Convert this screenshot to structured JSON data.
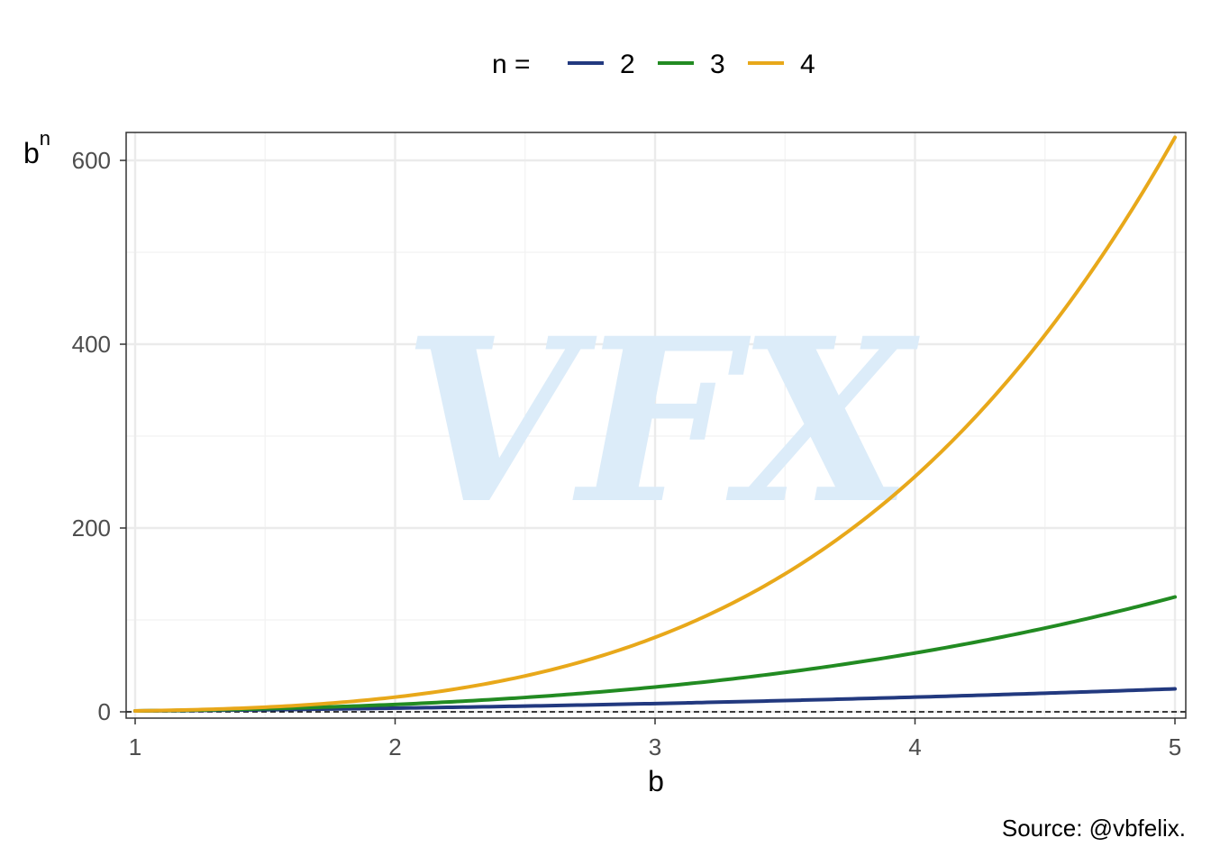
{
  "chart_data": {
    "type": "line",
    "xlabel": "b",
    "ylabel_base": "b",
    "ylabel_sup": "n",
    "legend_title": "n =",
    "legend_position": "top",
    "xlim": [
      1,
      5
    ],
    "ylim": [
      0,
      625
    ],
    "x_ticks": [
      1,
      2,
      3,
      4,
      5
    ],
    "y_ticks": [
      0,
      200,
      400,
      600
    ],
    "grid": true,
    "reference_line": {
      "y": 0,
      "style": "dashed"
    },
    "series": [
      {
        "name": "2",
        "exponent": 2,
        "color": "#22397f",
        "x": [
          1,
          1.5,
          2,
          2.5,
          3,
          3.5,
          4,
          4.5,
          5
        ],
        "values": [
          1,
          2.25,
          4,
          6.25,
          9,
          12.25,
          16,
          20.25,
          25
        ]
      },
      {
        "name": "3",
        "exponent": 3,
        "color": "#228b22",
        "x": [
          1,
          1.5,
          2,
          2.5,
          3,
          3.5,
          4,
          4.5,
          5
        ],
        "values": [
          1,
          3.375,
          8,
          15.625,
          27,
          42.875,
          64,
          91.125,
          125
        ]
      },
      {
        "name": "4",
        "exponent": 4,
        "color": "#e8a81a",
        "x": [
          1,
          1.5,
          2,
          2.5,
          3,
          3.5,
          4,
          4.5,
          5
        ],
        "values": [
          1,
          5.0625,
          16,
          39.0625,
          81,
          150.0625,
          256,
          410.0625,
          625
        ]
      }
    ],
    "watermark": "VFX",
    "caption": "Source: @vbfelix."
  }
}
